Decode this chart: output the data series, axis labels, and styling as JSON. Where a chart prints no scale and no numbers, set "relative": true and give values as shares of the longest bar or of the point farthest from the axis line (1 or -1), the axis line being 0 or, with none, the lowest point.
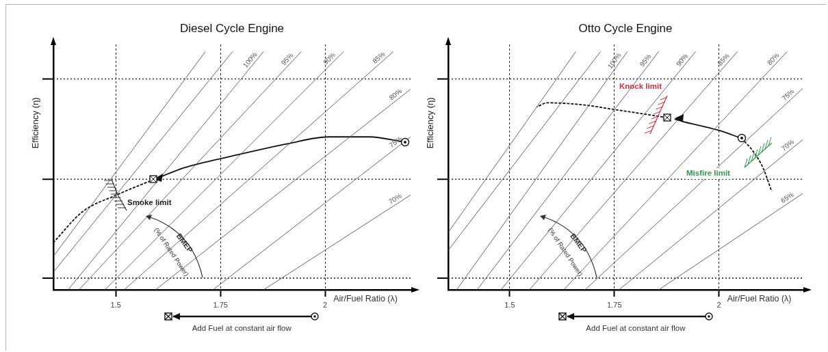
{
  "chart_data": [
    {
      "type": "line",
      "title": "Diesel Cycle Engine",
      "xlabel": "Air/Fuel Ratio (λ)",
      "ylabel": "Efficiency (η)",
      "relative": true,
      "xlim": [
        1.351,
        2.204
      ],
      "xticks": [
        1.5,
        1.75,
        2
      ],
      "grid": "x",
      "ref_lines": [
        {
          "axis": "y",
          "value": 0.885,
          "line_style": "dotted",
          "color": "#333333"
        },
        {
          "axis": "y",
          "value": 0.464,
          "line_style": "dotted",
          "color": "#333333"
        },
        {
          "axis": "y",
          "value": 0.049,
          "line_style": "dotted",
          "color": "#333333"
        }
      ],
      "series": [
        {
          "color": "#555555",
          "x": [
            1.351,
            1.714
          ],
          "values": [
            0.14,
            1
          ]
        },
        {
          "color": "#555555",
          "x": [
            1.351,
            1.779
          ],
          "values": [
            0.074,
            1
          ]
        },
        {
          "name": "100%",
          "color": "#555555",
          "x": [
            1.386,
            1.853
          ],
          "values": [
            0,
            1
          ]
        },
        {
          "name": "95%",
          "color": "#555555",
          "x": [
            1.412,
            1.943
          ],
          "values": [
            0,
            1
          ]
        },
        {
          "name": "90%",
          "color": "#555555",
          "x": [
            1.474,
            2.044
          ],
          "values": [
            0,
            1
          ]
        },
        {
          "name": "85%",
          "color": "#555555",
          "x": [
            1.52,
            2.163
          ],
          "values": [
            0,
            1
          ]
        },
        {
          "name": "80%",
          "color": "#555555",
          "x": [
            1.595,
            2.204
          ],
          "values": [
            0,
            0.842
          ]
        },
        {
          "name": "75%",
          "color": "#555555",
          "x": [
            1.732,
            2.204
          ],
          "values": [
            0,
            0.642
          ]
        },
        {
          "name": "70%",
          "color": "#555555",
          "x": [
            1.853,
            2.204
          ],
          "values": [
            0,
            0.398
          ]
        },
        {
          "color": "#111111",
          "x": [
            2.191,
            2.106,
            2.008,
            1.91,
            1.779,
            1.665,
            1.592
          ],
          "values": [
            0.619,
            0.642,
            0.642,
            0.613,
            0.562,
            0.513,
            0.464
          ]
        },
        {
          "color": "#111111",
          "line_style": "dashed",
          "x": [
            1.592,
            1.502,
            1.42,
            1.351
          ],
          "values": [
            0.464,
            0.398,
            0.327,
            0.198
          ]
        }
      ],
      "annotations": [
        "Smoke limit",
        "BMEP",
        "(% of Rated Power)",
        "Add Fuel at constant air flow"
      ]
    },
    {
      "type": "line",
      "title": "Otto Cycle Engine",
      "xlabel": "Air/Fuel Ratio (λ)",
      "ylabel": "Efficiency (η)",
      "relative": true,
      "xlim": [
        1.353,
        2.2
      ],
      "xticks": [
        1.5,
        1.75,
        2
      ],
      "grid": "x",
      "ref_lines": [
        {
          "axis": "y",
          "value": 0.885,
          "line_style": "dotted",
          "color": "#333333"
        },
        {
          "axis": "y",
          "value": 0.464,
          "line_style": "dotted",
          "color": "#333333"
        },
        {
          "axis": "y",
          "value": 0.049,
          "line_style": "dotted",
          "color": "#333333"
        }
      ],
      "series": [
        {
          "color": "#555555",
          "x": [
            1.353,
            1.658
          ],
          "values": [
            0.241,
            1
          ]
        },
        {
          "color": "#555555",
          "x": [
            1.353,
            1.717
          ],
          "values": [
            0.166,
            1
          ]
        },
        {
          "name": "100%",
          "color": "#555555",
          "x": [
            1.373,
            1.781
          ],
          "values": [
            0,
            1
          ]
        },
        {
          "name": "95%",
          "color": "#555555",
          "x": [
            1.422,
            1.856
          ],
          "values": [
            0,
            1
          ]
        },
        {
          "name": "90%",
          "color": "#555555",
          "x": [
            1.479,
            1.944
          ],
          "values": [
            0,
            1
          ]
        },
        {
          "name": "85%",
          "color": "#555555",
          "x": [
            1.547,
            2.044
          ],
          "values": [
            0,
            1
          ]
        },
        {
          "name": "80%",
          "color": "#555555",
          "x": [
            1.629,
            2.163
          ],
          "values": [
            0,
            1
          ]
        },
        {
          "name": "75%",
          "color": "#555555",
          "x": [
            1.68,
            2.2
          ],
          "values": [
            0,
            0.845
          ]
        },
        {
          "name": "70%",
          "color": "#555555",
          "x": [
            1.761,
            2.2
          ],
          "values": [
            0,
            0.63
          ]
        },
        {
          "name": "65%",
          "color": "#555555",
          "x": [
            1.856,
            2.2
          ],
          "values": [
            0,
            0.404
          ]
        },
        {
          "color": "#111111",
          "x": [
            2.054,
            1.998,
            1.917,
            1.894
          ],
          "values": [
            0.636,
            0.67,
            0.705,
            0.716
          ]
        },
        {
          "color": "#111111",
          "line_style": "dashed",
          "x": [
            1.876,
            1.835,
            1.753,
            1.672,
            1.59,
            1.565
          ],
          "values": [
            0.722,
            0.734,
            0.756,
            0.777,
            0.785,
            0.768
          ]
        },
        {
          "color": "#111111",
          "line_style": "dashed",
          "x": [
            2.054,
            2.08,
            2.105,
            2.126
          ],
          "values": [
            0.636,
            0.585,
            0.513,
            0.413
          ]
        }
      ],
      "annotations": [
        "Knock limit",
        "Misfire limit",
        "BMEP",
        "(% of Rated Power)",
        "Add Fuel at constant air flow"
      ]
    }
  ]
}
